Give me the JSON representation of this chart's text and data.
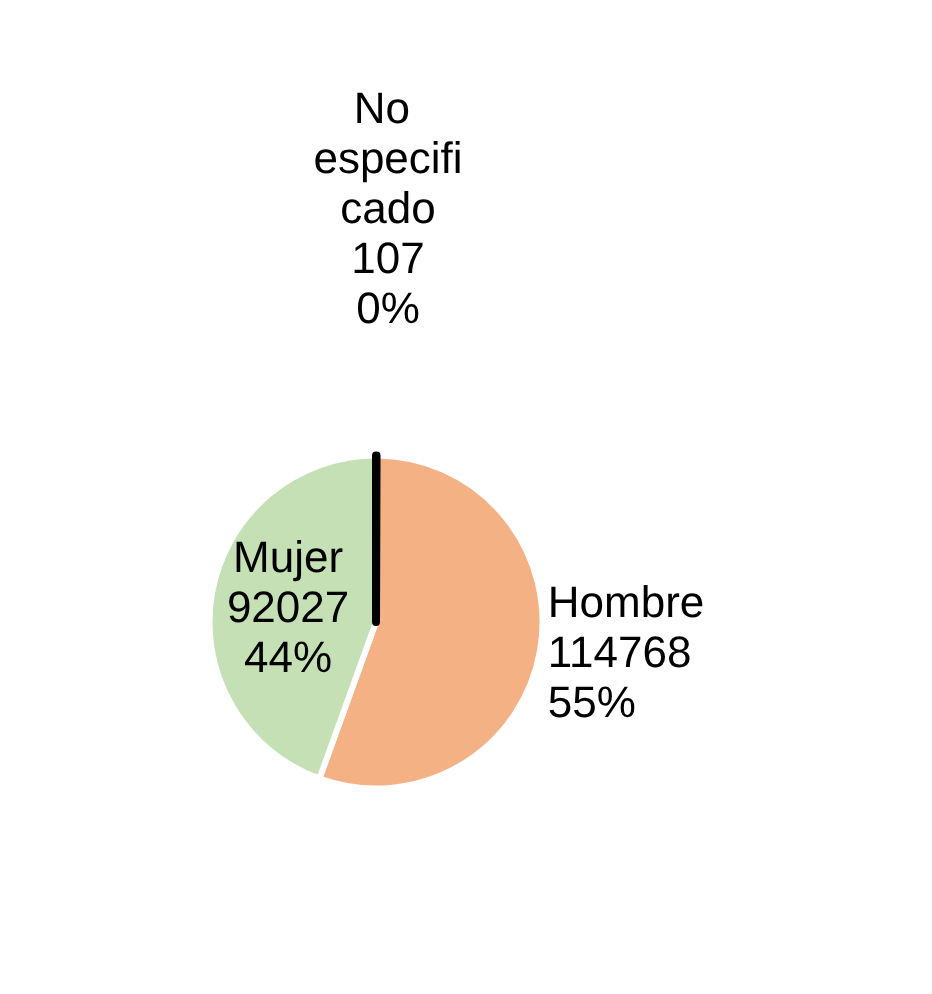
{
  "chart_data": {
    "type": "pie",
    "categories": [
      "No especificado",
      "Hombre",
      "Mujer"
    ],
    "values": [
      107,
      114768,
      92027
    ],
    "colors": [
      "#000000",
      "#f4b183",
      "#c5e0b4"
    ],
    "value_labels": [
      "107\n0%",
      "114768\n55%",
      "92027\n44%"
    ],
    "legend": false
  }
}
